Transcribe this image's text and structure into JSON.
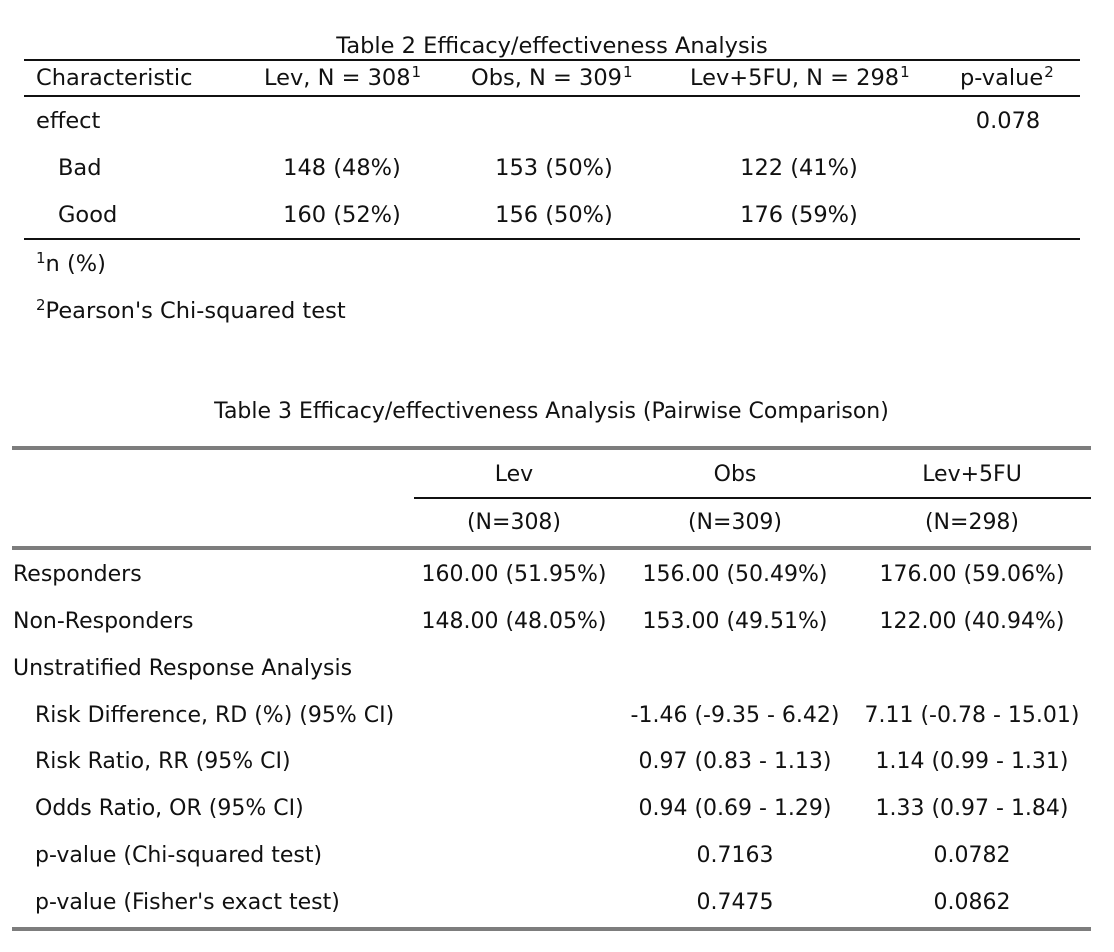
{
  "table2": {
    "title": "Table 2 Efficacy/effectiveness Analysis",
    "headers": {
      "characteristic": "Characteristic",
      "lev": "Lev, N = 308",
      "obs": "Obs, N = 309",
      "levfu": "Lev+5FU, N = 298",
      "pvalue": "p-value",
      "sup1": "1",
      "sup2": "2"
    },
    "rows": [
      {
        "label": "effect",
        "lev": "",
        "obs": "",
        "levfu": "",
        "p": "0.078"
      },
      {
        "label": "Bad",
        "lev": "148 (48%)",
        "obs": "153 (50%)",
        "levfu": "122 (41%)",
        "p": ""
      },
      {
        "label": "Good",
        "lev": "160 (52%)",
        "obs": "156 (50%)",
        "levfu": "176 (59%)",
        "p": ""
      }
    ],
    "footnotes": [
      {
        "mark": "1",
        "text": "n (%)"
      },
      {
        "mark": "2",
        "text": "Pearson's Chi-squared test"
      }
    ]
  },
  "table3": {
    "title": "Table 3 Efficacy/effectiveness Analysis (Pairwise Comparison)",
    "headers": {
      "lev": "Lev",
      "obs": "Obs",
      "levfu": "Lev+5FU",
      "lev_n": "(N=308)",
      "obs_n": "(N=309)",
      "levfu_n": "(N=298)"
    },
    "rows": [
      {
        "label": "Responders",
        "lev": "160.00 (51.95%)",
        "obs": "156.00 (50.49%)",
        "levfu": "176.00 (59.06%)"
      },
      {
        "label": "Non-Responders",
        "lev": "148.00 (48.05%)",
        "obs": "153.00 (49.51%)",
        "levfu": "122.00 (40.94%)"
      },
      {
        "label": "Unstratified Response Analysis",
        "lev": "",
        "obs": "",
        "levfu": ""
      },
      {
        "label": "Risk Difference, RD (%) (95% CI)",
        "lev": "",
        "obs": "-1.46 (-9.35 - 6.42)",
        "levfu": "7.11 (-0.78 - 15.01)"
      },
      {
        "label": "Risk Ratio, RR (95% CI)",
        "lev": "",
        "obs": "0.97 (0.83 - 1.13)",
        "levfu": "1.14 (0.99 - 1.31)"
      },
      {
        "label": "Odds Ratio, OR (95% CI)",
        "lev": "",
        "obs": "0.94 (0.69 - 1.29)",
        "levfu": "1.33 (0.97 - 1.84)"
      },
      {
        "label": "p-value (Chi-squared test)",
        "lev": "",
        "obs": "0.7163",
        "levfu": "0.0782"
      },
      {
        "label": "p-value (Fisher's exact test)",
        "lev": "",
        "obs": "0.7475",
        "levfu": "0.0862"
      }
    ]
  }
}
